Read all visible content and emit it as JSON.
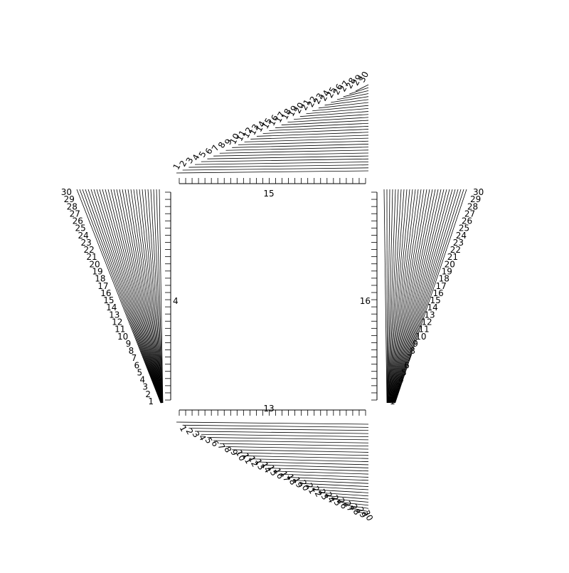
{
  "chart_data": {
    "type": "line",
    "title": "",
    "xlabel": "",
    "ylabel": "",
    "grid": false,
    "series_count": 30,
    "line_labels": [
      "1",
      "2",
      "3",
      "4",
      "5",
      "6",
      "7",
      "8",
      "9",
      "10",
      "11",
      "12",
      "13",
      "14",
      "15",
      "16",
      "17",
      "18",
      "19",
      "20",
      "21",
      "22",
      "23",
      "24",
      "25",
      "26",
      "27",
      "28",
      "29",
      "30"
    ],
    "axes": {
      "top": {
        "label": "15",
        "ticks": 30
      },
      "bottom": {
        "label": "13",
        "ticks": 30
      },
      "left": {
        "label": "4",
        "ticks": 30
      },
      "right": {
        "label": "16",
        "ticks": 30
      }
    }
  }
}
